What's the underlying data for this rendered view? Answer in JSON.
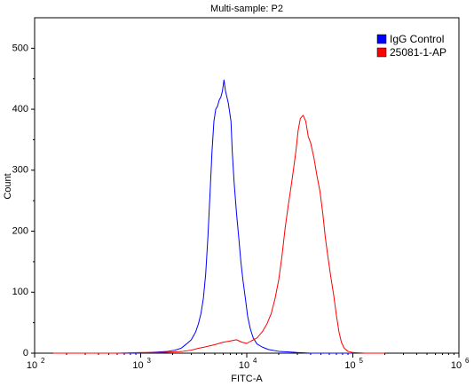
{
  "chart_data": {
    "type": "line",
    "title": "Multi-sample: P2",
    "xlabel": "FITC-A",
    "ylabel": "Count",
    "x_scale": "log",
    "xlim": [
      100,
      1000000
    ],
    "ylim": [
      0,
      550
    ],
    "x_ticks": [
      {
        "value": 100,
        "base": "10",
        "exp": "2"
      },
      {
        "value": 1000,
        "base": "10",
        "exp": "3"
      },
      {
        "value": 10000,
        "base": "10",
        "exp": "4"
      },
      {
        "value": 100000,
        "base": "10",
        "exp": "5"
      },
      {
        "value": 1000000,
        "base": "10",
        "exp": "6"
      }
    ],
    "y_ticks": [
      0,
      100,
      200,
      300,
      400,
      500
    ],
    "grid": false,
    "legend_position": "top-right",
    "series": [
      {
        "name": "IgG Control",
        "color": "#0000ff",
        "points": [
          [
            150,
            0
          ],
          [
            300,
            0
          ],
          [
            600,
            0
          ],
          [
            900,
            0
          ],
          [
            1200,
            1
          ],
          [
            1500,
            2
          ],
          [
            1800,
            3
          ],
          [
            2100,
            5
          ],
          [
            2400,
            8
          ],
          [
            2700,
            15
          ],
          [
            3000,
            22
          ],
          [
            3300,
            35
          ],
          [
            3500,
            48
          ],
          [
            3700,
            65
          ],
          [
            3900,
            90
          ],
          [
            4100,
            130
          ],
          [
            4300,
            190
          ],
          [
            4500,
            260
          ],
          [
            4700,
            330
          ],
          [
            4900,
            380
          ],
          [
            5100,
            400
          ],
          [
            5300,
            405
          ],
          [
            5500,
            415
          ],
          [
            5700,
            420
          ],
          [
            5900,
            430
          ],
          [
            6100,
            448
          ],
          [
            6300,
            430
          ],
          [
            6500,
            420
          ],
          [
            6700,
            410
          ],
          [
            6900,
            395
          ],
          [
            7100,
            380
          ],
          [
            7300,
            330
          ],
          [
            7600,
            280
          ],
          [
            8000,
            230
          ],
          [
            8400,
            190
          ],
          [
            8800,
            150
          ],
          [
            9200,
            120
          ],
          [
            9700,
            90
          ],
          [
            10200,
            60
          ],
          [
            10800,
            40
          ],
          [
            11500,
            25
          ],
          [
            12500,
            15
          ],
          [
            14000,
            10
          ],
          [
            16000,
            6
          ],
          [
            20000,
            3
          ],
          [
            25000,
            2
          ],
          [
            30000,
            1
          ],
          [
            40000,
            0
          ],
          [
            60000,
            0
          ],
          [
            100000,
            0
          ]
        ]
      },
      {
        "name": "25081-1-AP",
        "color": "#ff0000",
        "points": [
          [
            150,
            0
          ],
          [
            300,
            0
          ],
          [
            600,
            0
          ],
          [
            1000,
            1
          ],
          [
            1500,
            1
          ],
          [
            2000,
            2
          ],
          [
            2500,
            3
          ],
          [
            3000,
            5
          ],
          [
            3500,
            8
          ],
          [
            4000,
            10
          ],
          [
            5000,
            14
          ],
          [
            6000,
            18
          ],
          [
            7000,
            20
          ],
          [
            8000,
            22
          ],
          [
            9000,
            18
          ],
          [
            10000,
            16
          ],
          [
            11000,
            20
          ],
          [
            12500,
            25
          ],
          [
            14000,
            35
          ],
          [
            15500,
            48
          ],
          [
            17000,
            65
          ],
          [
            18500,
            90
          ],
          [
            20000,
            120
          ],
          [
            21500,
            160
          ],
          [
            23000,
            205
          ],
          [
            24500,
            240
          ],
          [
            26000,
            270
          ],
          [
            27500,
            300
          ],
          [
            29000,
            330
          ],
          [
            30500,
            365
          ],
          [
            32000,
            385
          ],
          [
            34000,
            390
          ],
          [
            36000,
            380
          ],
          [
            38000,
            355
          ],
          [
            40000,
            345
          ],
          [
            43000,
            320
          ],
          [
            46000,
            290
          ],
          [
            49000,
            265
          ],
          [
            52000,
            230
          ],
          [
            55000,
            190
          ],
          [
            58000,
            160
          ],
          [
            62000,
            125
          ],
          [
            66000,
            95
          ],
          [
            70000,
            62
          ],
          [
            74000,
            35
          ],
          [
            78000,
            18
          ],
          [
            83000,
            8
          ],
          [
            90000,
            3
          ],
          [
            100000,
            1
          ],
          [
            130000,
            0
          ],
          [
            200000,
            0
          ]
        ]
      }
    ]
  }
}
